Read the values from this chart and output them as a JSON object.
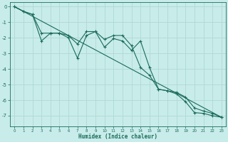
{
  "xlabel": "Humidex (Indice chaleur)",
  "bg_color": "#c8ece9",
  "grid_color": "#b0d8d4",
  "line_color": "#1a6b5a",
  "xlim": [
    -0.5,
    23.5
  ],
  "ylim": [
    -7.7,
    0.3
  ],
  "yticks": [
    0,
    -1,
    -2,
    -3,
    -4,
    -5,
    -6,
    -7
  ],
  "xticks": [
    0,
    1,
    2,
    3,
    4,
    5,
    6,
    7,
    8,
    9,
    10,
    11,
    12,
    13,
    14,
    15,
    16,
    17,
    18,
    19,
    20,
    21,
    22,
    23
  ],
  "line1_x": [
    0,
    1,
    2,
    3,
    4,
    5,
    6,
    7,
    8,
    9,
    10,
    11,
    12,
    13,
    14,
    15,
    16,
    17,
    18,
    19,
    20,
    21,
    22,
    23
  ],
  "line1_y": [
    0.0,
    -0.3,
    -0.5,
    -2.2,
    -1.7,
    -1.7,
    -2.0,
    -3.3,
    -1.85,
    -1.6,
    -2.6,
    -2.05,
    -2.2,
    -2.8,
    -2.2,
    -3.9,
    -5.3,
    -5.4,
    -5.6,
    -6.1,
    -6.8,
    -6.85,
    -7.0,
    -7.1
  ],
  "line2_x": [
    0,
    23
  ],
  "line2_y": [
    0.0,
    -7.1
  ],
  "line3_x": [
    0,
    1,
    2,
    3,
    4,
    5,
    6,
    7,
    8,
    9,
    10,
    11,
    12,
    13,
    14,
    15,
    16,
    17,
    18,
    19,
    20,
    21,
    22,
    23
  ],
  "line3_y": [
    0.0,
    -0.3,
    -0.5,
    -1.7,
    -1.7,
    -1.7,
    -1.85,
    -2.4,
    -1.6,
    -1.6,
    -2.1,
    -1.85,
    -1.85,
    -2.5,
    -3.9,
    -4.4,
    -5.3,
    -5.4,
    -5.5,
    -5.8,
    -6.5,
    -6.7,
    -6.85,
    -7.1
  ]
}
